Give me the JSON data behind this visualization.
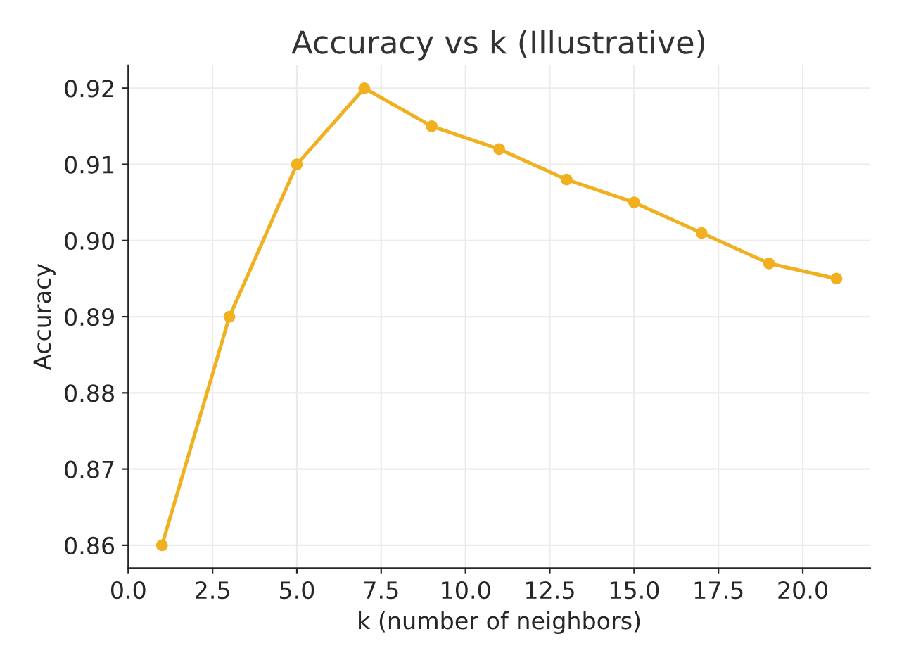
{
  "chart_data": {
    "type": "line",
    "title": "Accuracy vs k (Illustrative)",
    "xlabel": "k (number of neighbors)",
    "ylabel": "Accuracy",
    "x": [
      1,
      3,
      5,
      7,
      9,
      11,
      13,
      15,
      17,
      19,
      21
    ],
    "series": [
      {
        "color": "#f0b020",
        "values": [
          0.86,
          0.89,
          0.91,
          0.92,
          0.915,
          0.912,
          0.908,
          0.905,
          0.901,
          0.897,
          0.895
        ]
      }
    ],
    "xlim": [
      0,
      22
    ],
    "ylim": [
      0.857,
      0.923
    ],
    "xticks": [
      {
        "value": 0,
        "label": "0.0"
      },
      {
        "value": 2.5,
        "label": "2.5"
      },
      {
        "value": 5,
        "label": "5.0"
      },
      {
        "value": 7.5,
        "label": "7.5"
      },
      {
        "value": 10,
        "label": "10.0"
      },
      {
        "value": 12.5,
        "label": "12.5"
      },
      {
        "value": 15,
        "label": "15.0"
      },
      {
        "value": 17.5,
        "label": "17.5"
      },
      {
        "value": 20,
        "label": "20.0"
      }
    ],
    "yticks": [
      {
        "value": 0.86,
        "label": "0.86"
      },
      {
        "value": 0.87,
        "label": "0.87"
      },
      {
        "value": 0.88,
        "label": "0.88"
      },
      {
        "value": 0.89,
        "label": "0.89"
      },
      {
        "value": 0.9,
        "label": "0.90"
      },
      {
        "value": 0.91,
        "label": "0.91"
      },
      {
        "value": 0.92,
        "label": "0.92"
      }
    ],
    "grid": true,
    "marker": "circle",
    "line_style": "solid"
  }
}
